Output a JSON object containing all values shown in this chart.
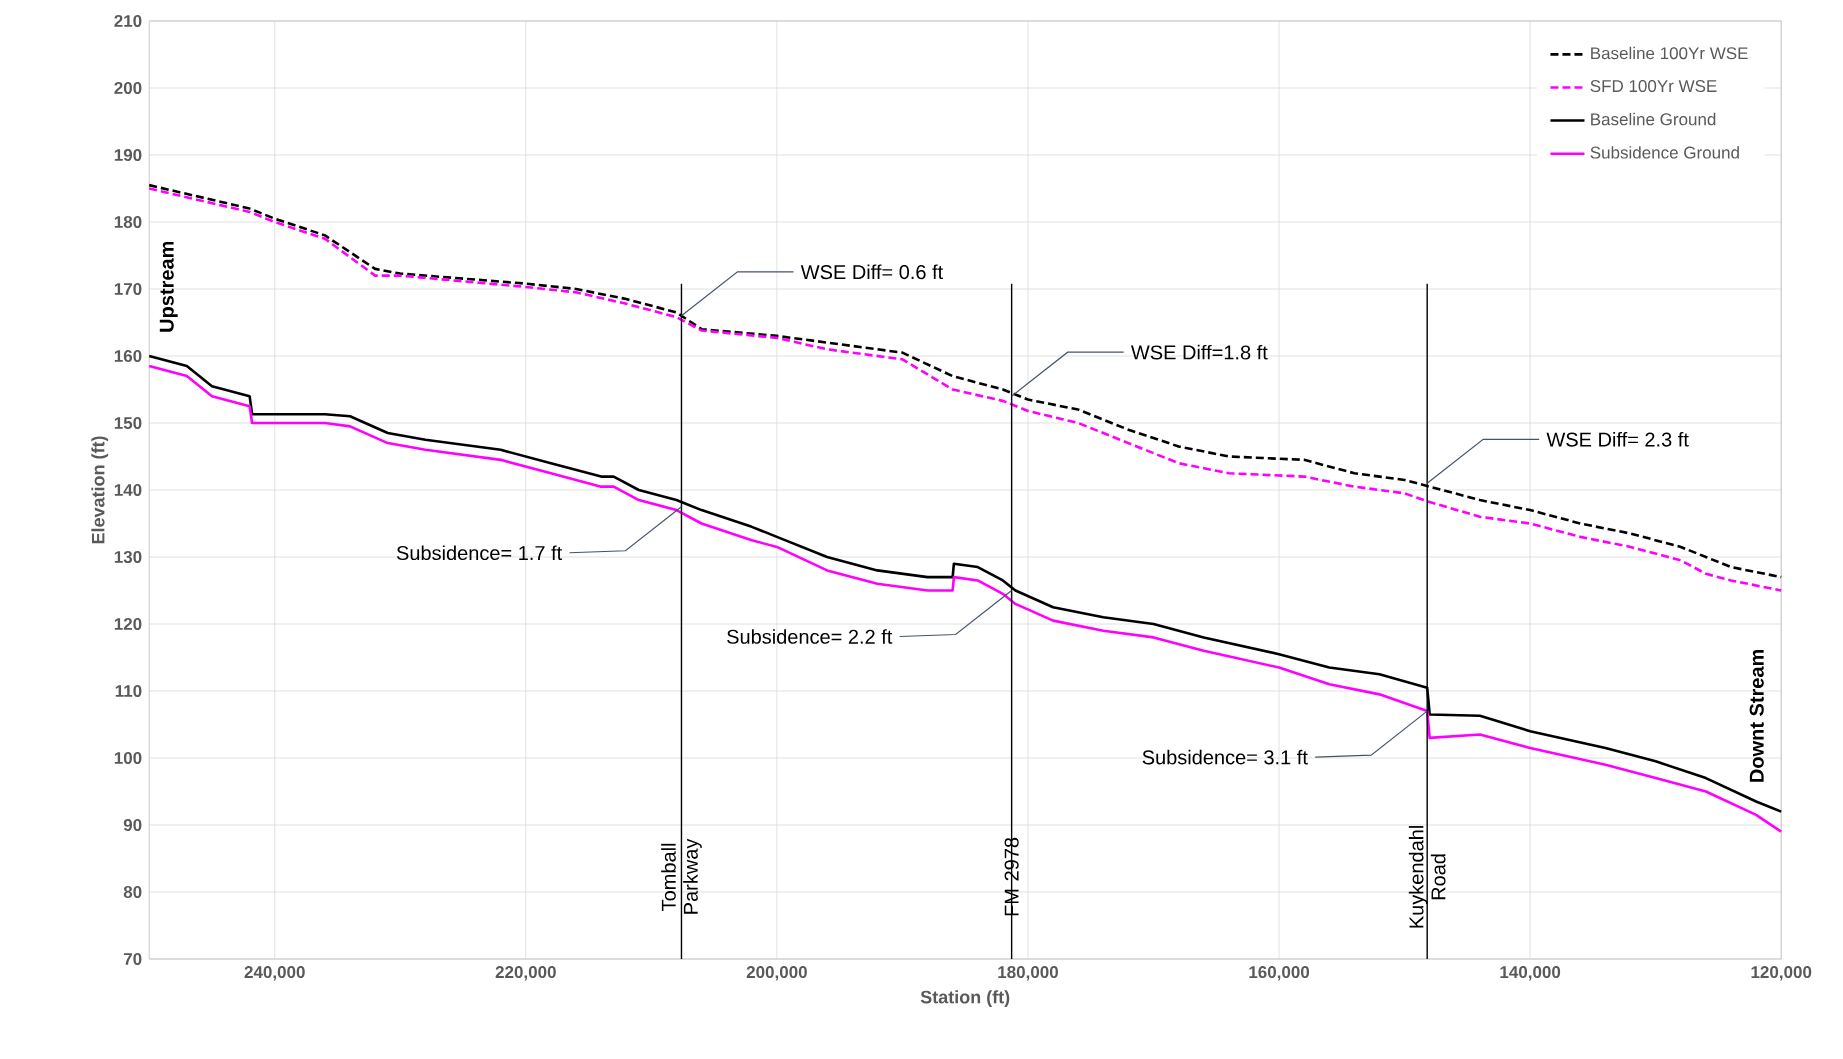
{
  "chart_data": {
    "type": "line",
    "xlabel": "Station (ft)",
    "ylabel": "Elevation (ft)",
    "xlim": [
      250000,
      120000
    ],
    "ylim": [
      70,
      210
    ],
    "xticks": [
      {
        "value": 240000,
        "label": "240,000"
      },
      {
        "value": 220000,
        "label": "220,000"
      },
      {
        "value": 200000,
        "label": "200,000"
      },
      {
        "value": 180000,
        "label": "180,000"
      },
      {
        "value": 160000,
        "label": "160,000"
      },
      {
        "value": 140000,
        "label": "140,000"
      },
      {
        "value": 120000,
        "label": "120,000"
      }
    ],
    "yticks": [
      70,
      80,
      90,
      100,
      110,
      120,
      130,
      140,
      150,
      160,
      170,
      180,
      190,
      200,
      210
    ],
    "grid": true,
    "legend": "top right",
    "series": [
      {
        "name": "Baseline 100Yr WSE",
        "color": "#000000",
        "line_style": "dashed",
        "x": [
          250000,
          242000,
          240000,
          236000,
          232000,
          230000,
          220000,
          216000,
          212000,
          208000,
          206000,
          200000,
          196000,
          190000,
          186000,
          182000,
          180000,
          176000,
          172000,
          168000,
          164000,
          158000,
          154000,
          150000,
          148000,
          144000,
          140000,
          136000,
          132000,
          128000,
          126000,
          124000,
          120000
        ],
        "values": [
          185.5,
          182,
          180.5,
          178,
          173,
          172.3,
          170.8,
          170,
          168.5,
          166.5,
          164,
          163,
          162,
          160.5,
          157,
          155,
          153.5,
          152,
          149,
          146.5,
          145,
          144.5,
          142.5,
          141.5,
          140.5,
          138.5,
          137,
          135,
          133.5,
          131.5,
          130,
          128.5,
          127
        ]
      },
      {
        "name": "SFD 100Yr WSE",
        "color": "#ff00ff",
        "line_style": "dashed",
        "x": [
          250000,
          242000,
          240000,
          236000,
          232000,
          230000,
          220000,
          216000,
          212000,
          208000,
          206000,
          200000,
          196000,
          190000,
          186000,
          182000,
          180000,
          176000,
          172000,
          168000,
          164000,
          158000,
          154000,
          150000,
          148000,
          144000,
          140000,
          136000,
          132000,
          128000,
          126000,
          124000,
          120000
        ],
        "values": [
          185,
          181.5,
          180,
          177.5,
          172,
          172,
          170.3,
          169.5,
          167.8,
          165.8,
          163.8,
          162.7,
          161,
          159.5,
          155,
          153.3,
          151.8,
          150,
          147,
          144,
          142.5,
          142,
          140.5,
          139.5,
          138.2,
          136,
          135,
          133,
          131.5,
          129.5,
          127.5,
          126.5,
          125
        ]
      },
      {
        "name": "Baseline Ground",
        "color": "#000000",
        "line_style": "solid",
        "x": [
          250000,
          247000,
          245000,
          242000,
          241800,
          236000,
          234000,
          231000,
          228000,
          222000,
          218000,
          214000,
          213000,
          211000,
          208000,
          206000,
          202000,
          200000,
          196000,
          192000,
          188000,
          186000,
          185900,
          184000,
          182000,
          181000,
          178000,
          174000,
          170000,
          166000,
          160000,
          156000,
          152000,
          148200,
          148000,
          144000,
          140000,
          134000,
          130000,
          126000,
          122000,
          120000
        ],
        "values": [
          160,
          158.5,
          155.5,
          154,
          151.3,
          151.3,
          151,
          148.5,
          147.5,
          146,
          144,
          142,
          142,
          140,
          138.5,
          137,
          134.5,
          133,
          130,
          128,
          127,
          127,
          129,
          128.5,
          126.5,
          125,
          122.5,
          121,
          120,
          118,
          115.5,
          113.5,
          112.5,
          110.5,
          106.5,
          106.3,
          104,
          101.5,
          99.5,
          97,
          93.5,
          92
        ]
      },
      {
        "name": "Subsidence Ground",
        "color": "#ff00ff",
        "line_style": "solid",
        "x": [
          250000,
          247000,
          245000,
          242000,
          241800,
          236000,
          234000,
          231000,
          228000,
          222000,
          218000,
          214000,
          213000,
          211000,
          208000,
          206000,
          202000,
          200000,
          196000,
          192000,
          188000,
          186000,
          185900,
          184000,
          182000,
          181000,
          178000,
          174000,
          170000,
          166000,
          160000,
          156000,
          152000,
          148200,
          148000,
          144000,
          140000,
          134000,
          130000,
          126000,
          122000,
          120000
        ],
        "values": [
          158.5,
          157,
          154,
          152.5,
          150,
          150,
          149.5,
          147,
          146,
          144.5,
          142.5,
          140.5,
          140.5,
          138.5,
          137,
          135,
          132.5,
          131.5,
          128,
          126,
          125,
          125,
          127,
          126.5,
          124.5,
          123,
          120.5,
          119,
          118,
          116,
          113.5,
          111,
          109.5,
          107,
          103,
          103.5,
          101.5,
          99,
          97,
          95,
          91.5,
          89
        ]
      }
    ],
    "ref_lines": [
      {
        "axis": "x",
        "value": 207600,
        "label": "Tomball Parkway",
        "color": "#000000"
      },
      {
        "axis": "x",
        "value": 181300,
        "label": "FM 2978",
        "color": "#000000"
      },
      {
        "axis": "x",
        "value": 148200,
        "label": "Kuykendahl Road",
        "color": "#000000"
      }
    ],
    "annotations": [
      {
        "text": "WSE Diff= 0.6 ft",
        "x": 207600,
        "y": 166
      },
      {
        "text": "Subsidence= 1.7 ft",
        "x": 207600,
        "y": 137.5
      },
      {
        "text": "WSE Diff=1.8 ft",
        "x": 181300,
        "y": 154
      },
      {
        "text": "Subsidence= 2.2 ft",
        "x": 181300,
        "y": 125
      },
      {
        "text": "WSE Diff= 2.3 ft",
        "x": 148200,
        "y": 141
      },
      {
        "text": "Subsidence= 3.1 ft",
        "x": 148200,
        "y": 107
      },
      "Upstream",
      "Downt Stream"
    ]
  }
}
